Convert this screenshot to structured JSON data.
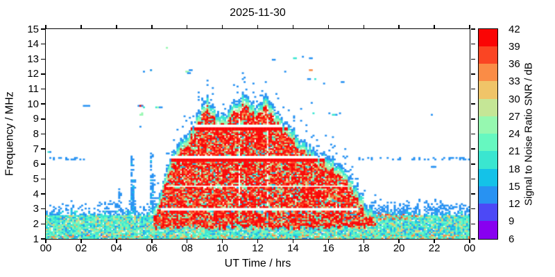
{
  "title": "2025-11-30",
  "axes": {
    "x": {
      "label": "UT Time / hrs",
      "tick_labels": [
        "00",
        "02",
        "04",
        "06",
        "08",
        "10",
        "12",
        "14",
        "16",
        "18",
        "20",
        "22",
        "00"
      ],
      "tick_values": [
        0,
        2,
        4,
        6,
        8,
        10,
        12,
        14,
        16,
        18,
        20,
        22,
        24
      ],
      "min": 0,
      "max": 24
    },
    "y": {
      "label": "Frequency / MHz",
      "tick_values": [
        1,
        2,
        3,
        4,
        5,
        6,
        7,
        8,
        9,
        10,
        11,
        12,
        13,
        14,
        15
      ],
      "min": 1,
      "max": 15
    }
  },
  "colorbar": {
    "label": "Signal to Noise Ratio SNR / dB",
    "ticks": [
      6,
      9,
      12,
      15,
      18,
      21,
      24,
      27,
      30,
      33,
      36,
      39,
      42
    ],
    "min": 6,
    "max": 42,
    "step": 3,
    "colors": [
      "#8800f0",
      "#4c49f6",
      "#2892f2",
      "#14c2e8",
      "#3ae6d0",
      "#66f8c0",
      "#96f8b0",
      "#c5e696",
      "#f0c468",
      "#fa8c46",
      "#fa4523",
      "#fa0505"
    ]
  },
  "chart_data": {
    "type": "heatmap",
    "title": "2025-11-30",
    "xlabel": "UT Time / hrs",
    "ylabel": "Frequency / MHz",
    "value_label": "Signal to Noise Ratio SNR / dB",
    "x_range": [
      0,
      24
    ],
    "y_range": [
      1,
      15
    ],
    "value_range": [
      6,
      42
    ],
    "grid": {
      "nt": 240,
      "nf": 141,
      "df": 0.1
    },
    "seed": 42,
    "envelope_max_freq": [
      [
        6.0,
        2.9
      ],
      [
        6.2,
        3.2
      ],
      [
        6.4,
        3.9
      ],
      [
        6.6,
        4.6
      ],
      [
        6.8,
        5.3
      ],
      [
        7.0,
        6.1
      ],
      [
        7.2,
        6.8
      ],
      [
        7.5,
        7.4
      ],
      [
        7.8,
        7.9
      ],
      [
        8.1,
        8.3
      ],
      [
        8.4,
        8.9
      ],
      [
        8.7,
        9.5
      ],
      [
        9.0,
        10.3
      ],
      [
        9.15,
        10.7
      ],
      [
        9.35,
        10.2
      ],
      [
        9.6,
        9.7
      ],
      [
        9.9,
        9.3
      ],
      [
        10.2,
        9.5
      ],
      [
        10.5,
        9.9
      ],
      [
        10.8,
        10.3
      ],
      [
        11.1,
        10.6
      ],
      [
        11.35,
        10.8
      ],
      [
        11.6,
        10.3
      ],
      [
        11.9,
        9.9
      ],
      [
        12.2,
        10.3
      ],
      [
        12.5,
        10.7
      ],
      [
        12.75,
        10.3
      ],
      [
        13.0,
        9.8
      ],
      [
        13.3,
        9.2
      ],
      [
        13.6,
        8.8
      ],
      [
        13.9,
        8.5
      ],
      [
        14.2,
        8.0
      ],
      [
        14.5,
        7.6
      ],
      [
        14.8,
        7.3
      ],
      [
        15.1,
        7.0
      ],
      [
        15.4,
        6.7
      ],
      [
        15.7,
        6.9
      ],
      [
        16.0,
        6.6
      ],
      [
        16.3,
        6.3
      ],
      [
        16.6,
        6.0
      ],
      [
        16.9,
        5.7
      ],
      [
        17.2,
        5.2
      ],
      [
        17.5,
        4.7
      ],
      [
        17.8,
        4.1
      ],
      [
        18.1,
        3.5
      ],
      [
        18.4,
        3.1
      ],
      [
        18.7,
        2.9
      ]
    ],
    "noise_band": {
      "dense_below_mhz": 2.5,
      "top_mhz": 2.75,
      "speckle_above_mhz": 3.45,
      "evening_enhanced": {
        "hours": [
          17.7,
          21.5
        ],
        "f0": 2.2,
        "f1": 2.8
      }
    },
    "enhanced_lines": [
      {
        "f0": 6.12,
        "f1": 6.38,
        "min_env": 6.7
      },
      {
        "f0": 8.28,
        "f1": 8.46,
        "min_env": 8.8
      }
    ],
    "white_gaps": [
      {
        "f0": 2.88,
        "f1": 3.02,
        "min_env": 4.2
      },
      {
        "f0": 4.42,
        "f1": 4.58,
        "min_env": 5.6
      },
      {
        "f0": 6.38,
        "f1": 6.6,
        "min_env": 6.7
      },
      {
        "f0": 8.46,
        "f1": 8.66,
        "min_env": 8.8
      }
    ],
    "interference_line": {
      "f0": 6.3,
      "f1": 6.45,
      "hours": [
        [
          0,
          2.2
        ],
        [
          17.6,
          24
        ]
      ],
      "p": 0.3
    },
    "dropouts": [
      10.95,
      12.55
    ],
    "streaks": [
      {
        "t": 4.15,
        "f0": 2.9,
        "f1": 4.4,
        "p": 0.5
      },
      {
        "t": 4.85,
        "f0": 2.9,
        "f1": 6.5,
        "p": 0.8
      },
      {
        "t": 4.95,
        "f0": 2.9,
        "f1": 5.0,
        "p": 0.5
      },
      {
        "t": 5.95,
        "f0": 3.0,
        "f1": 6.7,
        "p": 0.7
      },
      {
        "t": 6.08,
        "f0": 3.0,
        "f1": 5.3,
        "p": 0.5
      }
    ],
    "scatter": [
      [
        0.15,
        6.85,
        19
      ],
      [
        0.3,
        6.8,
        13
      ],
      [
        2.15,
        9.9,
        13
      ],
      [
        2.25,
        9.92,
        13
      ],
      [
        2.33,
        9.87,
        13
      ],
      [
        5.25,
        9.9,
        13
      ],
      [
        5.32,
        9.95,
        41
      ],
      [
        5.42,
        9.9,
        13
      ],
      [
        5.5,
        9.85,
        19
      ],
      [
        5.3,
        9.35,
        25
      ],
      [
        5.45,
        9.4,
        25
      ],
      [
        5.3,
        8.5,
        13
      ],
      [
        5.55,
        12.15,
        13
      ],
      [
        5.9,
        12.3,
        25
      ],
      [
        5.98,
        12.25,
        13
      ],
      [
        6.2,
        9.82,
        19
      ],
      [
        6.3,
        9.8,
        25
      ],
      [
        6.42,
        9.78,
        13
      ],
      [
        6.85,
        13.75,
        25
      ],
      [
        7.9,
        12.2,
        25
      ],
      [
        8.0,
        12.1,
        13
      ],
      [
        8.15,
        12.25,
        13
      ],
      [
        12.8,
        13.0,
        13
      ],
      [
        13.55,
        12.2,
        13
      ],
      [
        14.0,
        13.1,
        19
      ],
      [
        14.55,
        13.15,
        13
      ],
      [
        14.9,
        13.1,
        13
      ],
      [
        15.0,
        13.05,
        13
      ],
      [
        14.95,
        12.3,
        34
      ],
      [
        14.8,
        11.7,
        13
      ],
      [
        15.2,
        11.65,
        19
      ],
      [
        15.75,
        11.4,
        13
      ],
      [
        16.7,
        11.5,
        13
      ],
      [
        15.05,
        10.1,
        13
      ],
      [
        14.4,
        9.65,
        13
      ],
      [
        15.15,
        9.4,
        19
      ],
      [
        16.05,
        9.45,
        13
      ],
      [
        16.25,
        9.35,
        19
      ],
      [
        16.45,
        9.3,
        13
      ],
      [
        16.6,
        9.4,
        13
      ],
      [
        21.8,
        9.3,
        13
      ],
      [
        21.85,
        5.8,
        13
      ],
      [
        21.95,
        5.75,
        13
      ]
    ]
  }
}
